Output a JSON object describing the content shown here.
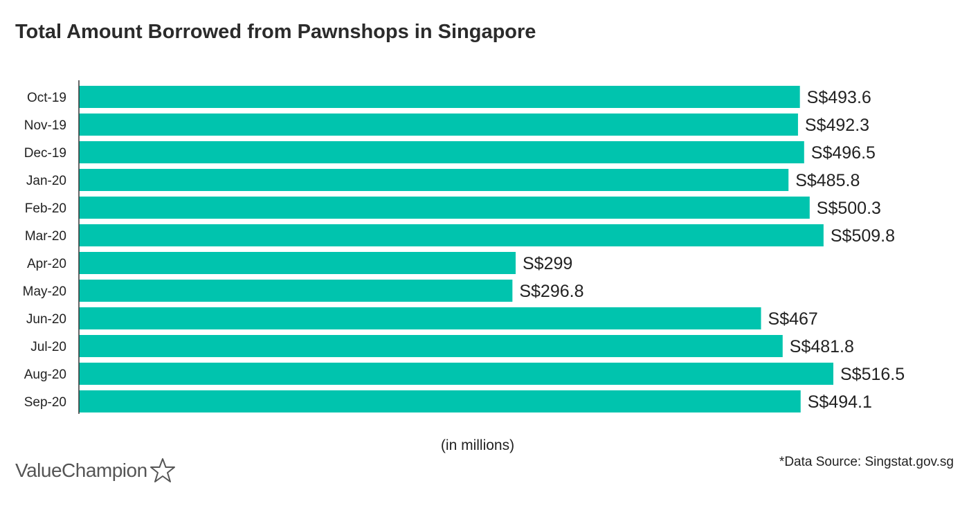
{
  "title": "Total Amount Borrowed from Pawnshops in Singapore",
  "unit_note": "(in millions)",
  "source_note": "*Data Source: Singstat.gov.sg",
  "brand": {
    "name": "ValueChampion",
    "icon": "star-outline-icon"
  },
  "colors": {
    "bar": "#00c4ae",
    "axis": "#333333",
    "text": "#222222"
  },
  "chart_data": {
    "type": "bar",
    "orientation": "horizontal",
    "title": "Total Amount Borrowed from Pawnshops in Singapore",
    "xlabel": "(in millions)",
    "ylabel": "",
    "categories": [
      "Oct-19",
      "Nov-19",
      "Dec-19",
      "Jan-20",
      "Feb-20",
      "Mar-20",
      "Apr-20",
      "May-20",
      "Jun-20",
      "Jul-20",
      "Aug-20",
      "Sep-20"
    ],
    "values": [
      493.6,
      492.3,
      496.5,
      485.8,
      500.3,
      509.8,
      299,
      296.8,
      467,
      481.8,
      516.5,
      494.1
    ],
    "data_labels": [
      "S$493.6",
      "S$492.3",
      "S$496.5",
      "S$485.8",
      "S$500.3",
      "S$509.8",
      "S$299",
      "S$296.8",
      "S$467",
      "S$481.8",
      "S$516.5",
      "S$494.1"
    ],
    "xlim": [
      0,
      516.5
    ],
    "grid": false,
    "legend": "none"
  }
}
